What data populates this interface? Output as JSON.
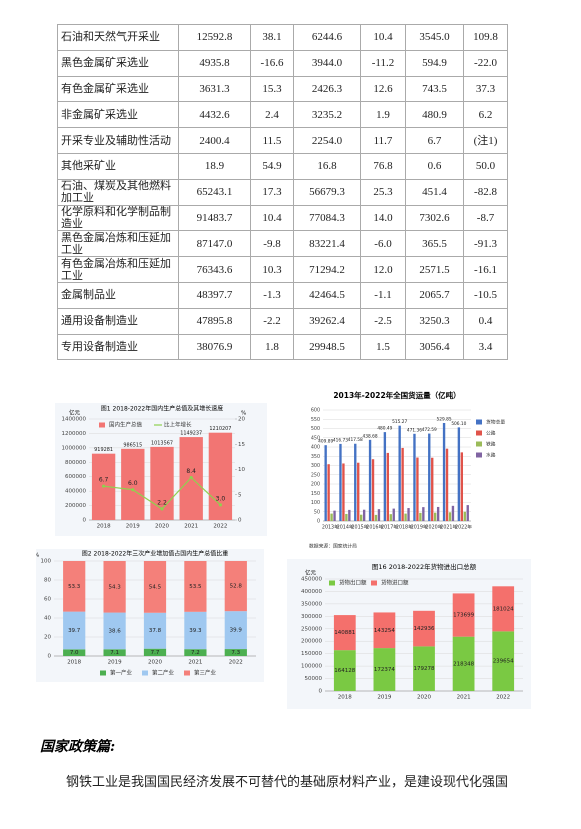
{
  "table": {
    "rows": [
      [
        "石油和天然气开采业",
        "12592.8",
        "38.1",
        "6244.6",
        "10.4",
        "3545.0",
        "109.8"
      ],
      [
        "黑色金属矿采选业",
        "4935.8",
        "-16.6",
        "3944.0",
        "-11.2",
        "594.9",
        "-22.0"
      ],
      [
        "有色金属矿采选业",
        "3631.3",
        "15.3",
        "2426.3",
        "12.6",
        "743.5",
        "37.3"
      ],
      [
        "非金属矿采选业",
        "4432.6",
        "2.4",
        "3235.2",
        "1.9",
        "480.9",
        "6.2"
      ],
      [
        "开采专业及辅助性活动",
        "2400.4",
        "11.5",
        "2254.0",
        "11.7",
        "6.7",
        "(注1)"
      ],
      [
        "其他采矿业",
        "18.9",
        "54.9",
        "16.8",
        "76.8",
        "0.6",
        "50.0"
      ],
      [
        "石油、煤炭及其他燃料加工业",
        "65243.1",
        "17.3",
        "56679.3",
        "25.3",
        "451.4",
        "-82.8"
      ],
      [
        "化学原料和化学制品制造业",
        "91483.7",
        "10.4",
        "77084.3",
        "14.0",
        "7302.6",
        "-8.7"
      ],
      [
        "黑色金属冶炼和压延加工业",
        "87147.0",
        "-9.8",
        "83221.4",
        "-6.0",
        "365.5",
        "-91.3"
      ],
      [
        "有色金属冶炼和压延加工业",
        "76343.6",
        "10.3",
        "71294.2",
        "12.0",
        "2571.5",
        "-16.1"
      ],
      [
        "金属制品业",
        "48397.7",
        "-1.3",
        "42464.5",
        "-1.1",
        "2065.7",
        "-10.5"
      ],
      [
        "通用设备制造业",
        "47895.8",
        "-2.2",
        "39262.4",
        "-2.5",
        "3250.3",
        "0.4"
      ],
      [
        "专用设备制造业",
        "38076.9",
        "1.8",
        "29948.5",
        "1.5",
        "3056.4",
        "3.4"
      ]
    ]
  },
  "chart_data": [
    {
      "type": "bar",
      "title": "图1  2018-2022年国内生产总值及其增长速度",
      "y_label": "亿元",
      "y2_label": "%",
      "categories": [
        "2018",
        "2019",
        "2020",
        "2021",
        "2022"
      ],
      "series": [
        {
          "name": "国内生产总值",
          "color": "#f27573",
          "values": [
            919281,
            986515,
            1013567,
            1149237,
            1210207
          ],
          "labels": true
        },
        {
          "name": "比上年增长",
          "color": "#8fd14f",
          "type": "line",
          "axis": "y2",
          "values": [
            6.7,
            6.0,
            2.2,
            8.4,
            3.0
          ],
          "value_labels": [
            "6.7",
            "6.0",
            "2.2",
            "8.4",
            "3.0"
          ],
          "labels": true
        }
      ],
      "ylim": [
        0,
        1400000
      ],
      "yticks": [
        0,
        200000,
        400000,
        600000,
        800000,
        1000000,
        1200000,
        1400000
      ],
      "y2lim": [
        0,
        20
      ],
      "y2ticks": [
        0,
        5,
        10,
        15,
        20
      ],
      "grid": true,
      "legend": "top"
    },
    {
      "type": "bar",
      "title": "2013年-2022年全国货运量（亿吨）",
      "note": "数据来源：国家统计局",
      "categories": [
        "2013年",
        "2014年",
        "2015年",
        "2016年",
        "2017年",
        "2018年",
        "2019年",
        "2020年",
        "2021年",
        "2022年"
      ],
      "series": [
        {
          "name": "货物总量",
          "color": "#4472c4",
          "values": [
            409.89,
            416.73,
            417.58,
            438.68,
            480.49,
            515.27,
            471.36,
            472.59,
            529.85,
            506.1
          ],
          "value_labels": [
            "409.89",
            "416.73",
            "417.58",
            "438.68",
            "480.49",
            "515.27",
            "471.36",
            "472.59",
            "529.85",
            "506.10"
          ],
          "labels": true
        },
        {
          "name": "公路",
          "color": "#e0534a",
          "values": [
            307,
            311,
            315,
            334,
            368,
            395,
            343,
            342,
            391,
            371
          ]
        },
        {
          "name": "铁路",
          "color": "#9bbb59",
          "values": [
            40,
            38,
            34,
            33,
            37,
            40,
            44,
            45,
            47,
            50
          ]
        },
        {
          "name": "水路",
          "color": "#8064a2",
          "values": [
            56,
            60,
            61,
            64,
            67,
            70,
            75,
            76,
            82,
            86
          ]
        }
      ],
      "ylim": [
        0,
        600
      ],
      "yticks": [
        0,
        50,
        100,
        150,
        200,
        250,
        300,
        350,
        400,
        450,
        500,
        550,
        600
      ],
      "grid": true,
      "legend": "right"
    },
    {
      "type": "bar",
      "title": "图2  2018-2022年三次产业增加值占国内生产总值比重",
      "y_label": "%",
      "stacked": true,
      "categories": [
        "2018",
        "2019",
        "2020",
        "2021",
        "2022"
      ],
      "series": [
        {
          "name": "第一产业",
          "color": "#4caf50",
          "values": [
            7.0,
            7.1,
            7.7,
            7.2,
            7.3
          ],
          "value_labels": [
            "7.0",
            "7.1",
            "7.7",
            "7.2",
            "7.3"
          ],
          "labels": true
        },
        {
          "name": "第二产业",
          "color": "#9fc8f0",
          "values": [
            39.7,
            38.6,
            37.8,
            39.3,
            39.9
          ],
          "labels": true
        },
        {
          "name": "第三产业",
          "color": "#f4807a",
          "values": [
            53.3,
            54.3,
            54.5,
            53.5,
            52.8
          ],
          "labels": true
        }
      ],
      "ylim": [
        0,
        100
      ],
      "yticks": [
        0,
        20,
        40,
        60,
        80,
        100
      ],
      "grid": true,
      "legend": "bottom"
    },
    {
      "type": "bar",
      "title": "图16  2018-2022年货物进出口总额",
      "y_label": "亿元",
      "stacked": true,
      "categories": [
        "2018",
        "2019",
        "2020",
        "2021",
        "2022"
      ],
      "series": [
        {
          "name": "货物出口额",
          "color": "#7ac943",
          "values": [
            164128,
            172374,
            179278,
            218348,
            239654
          ],
          "labels": true
        },
        {
          "name": "货物进口额",
          "color": "#f4706c",
          "values": [
            140881,
            143254,
            142936,
            173699,
            181024
          ],
          "labels": true
        }
      ],
      "ylim": [
        0,
        450000
      ],
      "yticks": [
        0,
        50000,
        100000,
        150000,
        200000,
        250000,
        300000,
        350000,
        400000,
        450000
      ],
      "grid": true,
      "legend": "top-left"
    }
  ],
  "heading": "国家政策篇:",
  "paragraph": "钢铁工业是我国国民经济发展不可替代的基础原材料产业，是建设现代化强国"
}
